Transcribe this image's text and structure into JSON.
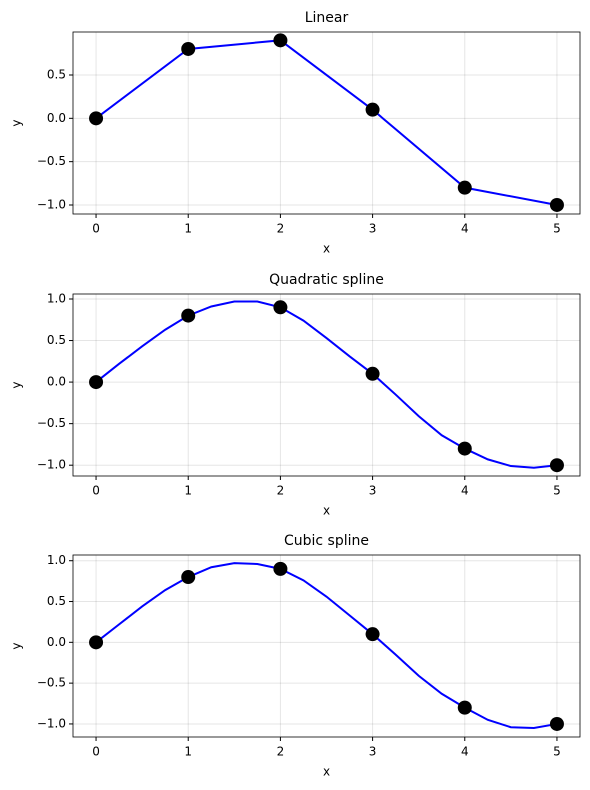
{
  "chart_data": [
    {
      "type": "line",
      "title": "Linear",
      "x_label": "x",
      "y_label": "y",
      "grid": true,
      "xlim": [
        -0.25,
        5.25
      ],
      "xticks": [
        0,
        1,
        2,
        3,
        4,
        5
      ],
      "ylim": [
        -1.104,
        0.996
      ],
      "yticks": [
        {
          "value": 0.5,
          "label": "0.5"
        },
        {
          "value": 0,
          "label": "0.0"
        },
        {
          "value": -0.5,
          "label": "−0.5"
        },
        {
          "value": -1,
          "label": "−1.0"
        }
      ],
      "series": [
        {
          "type": "line",
          "color": "#0000ff",
          "x": [
            0,
            1,
            2,
            3,
            4,
            5
          ],
          "values": [
            0,
            0.8,
            0.9,
            0.1,
            -0.8,
            -1.0
          ]
        },
        {
          "type": "scatter",
          "color": "#000000",
          "x": [
            0,
            1,
            2,
            3,
            4,
            5
          ],
          "values": [
            0,
            0.8,
            0.9,
            0.1,
            -0.8,
            -1.0
          ]
        }
      ]
    },
    {
      "type": "line",
      "title": "Quadratic spline",
      "x_label": "x",
      "y_label": "y",
      "grid": true,
      "xlim": [
        -0.25,
        5.25
      ],
      "xticks": [
        0,
        1,
        2,
        3,
        4,
        5
      ],
      "ylim": [
        -1.13,
        1.06
      ],
      "yticks": [
        {
          "value": 1,
          "label": "1.0"
        },
        {
          "value": 0.5,
          "label": "0.5"
        },
        {
          "value": 0,
          "label": "0.0"
        },
        {
          "value": -0.5,
          "label": "−0.5"
        },
        {
          "value": -1,
          "label": "−1.0"
        }
      ],
      "series": [
        {
          "type": "line",
          "color": "#0000ff",
          "x": [
            0,
            0.25,
            0.5,
            0.75,
            1,
            1.25,
            1.5,
            1.75,
            2,
            2.25,
            2.5,
            2.75,
            3,
            3.25,
            3.5,
            3.75,
            4,
            4.25,
            4.5,
            4.75,
            5
          ],
          "values": [
            0,
            0.22,
            0.43,
            0.63,
            0.8,
            0.91,
            0.97,
            0.97,
            0.9,
            0.74,
            0.53,
            0.31,
            0.1,
            -0.15,
            -0.41,
            -0.64,
            -0.8,
            -0.93,
            -1.01,
            -1.03,
            -1.0
          ]
        },
        {
          "type": "scatter",
          "color": "#000000",
          "x": [
            0,
            1,
            2,
            3,
            4,
            5
          ],
          "values": [
            0,
            0.8,
            0.9,
            0.1,
            -0.8,
            -1.0
          ]
        }
      ]
    },
    {
      "type": "line",
      "title": "Cubic spline",
      "x_label": "x",
      "y_label": "y",
      "grid": true,
      "xlim": [
        -0.25,
        5.25
      ],
      "xticks": [
        0,
        1,
        2,
        3,
        4,
        5
      ],
      "ylim": [
        -1.16,
        1.07
      ],
      "yticks": [
        {
          "value": 1,
          "label": "1.0"
        },
        {
          "value": 0.5,
          "label": "0.5"
        },
        {
          "value": 0,
          "label": "0.0"
        },
        {
          "value": -0.5,
          "label": "−0.5"
        },
        {
          "value": -1,
          "label": "−1.0"
        }
      ],
      "series": [
        {
          "type": "line",
          "color": "#0000ff",
          "x": [
            0,
            0.25,
            0.5,
            0.75,
            1,
            1.25,
            1.5,
            1.75,
            2,
            2.25,
            2.5,
            2.75,
            3,
            3.25,
            3.5,
            3.75,
            4,
            4.25,
            4.5,
            4.75,
            5
          ],
          "values": [
            0,
            0.22,
            0.44,
            0.64,
            0.8,
            0.92,
            0.97,
            0.96,
            0.9,
            0.76,
            0.56,
            0.33,
            0.1,
            -0.15,
            -0.41,
            -0.63,
            -0.8,
            -0.95,
            -1.04,
            -1.05,
            -1.0
          ]
        },
        {
          "type": "scatter",
          "color": "#000000",
          "x": [
            0,
            1,
            2,
            3,
            4,
            5
          ],
          "values": [
            0,
            0.8,
            0.9,
            0.1,
            -0.8,
            -1.0
          ]
        }
      ]
    }
  ]
}
